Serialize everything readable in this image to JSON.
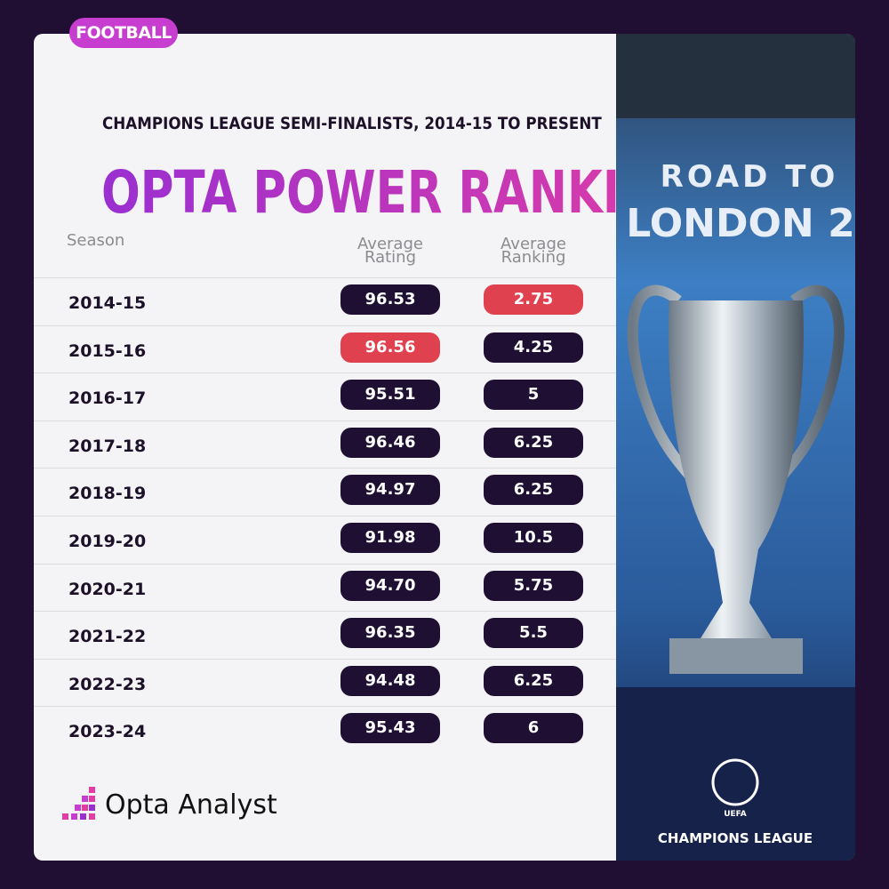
{
  "tag": "FOOTBALL",
  "header": {
    "subtitle": "CHAMPIONS LEAGUE SEMI-FINALISTS, 2014-15 TO PRESENT",
    "title": "OPTA POWER RANKINGS"
  },
  "table": {
    "columns": [
      "Season",
      "Average Rating",
      "Average Ranking"
    ],
    "highlight_color": "#e0414f",
    "rows": [
      {
        "season": "2014-15",
        "rating": "96.53",
        "ranking": "2.75",
        "highlight": "ranking"
      },
      {
        "season": "2015-16",
        "rating": "96.56",
        "ranking": "4.25",
        "highlight": "rating"
      },
      {
        "season": "2016-17",
        "rating": "95.51",
        "ranking": "5"
      },
      {
        "season": "2017-18",
        "rating": "96.46",
        "ranking": "6.25"
      },
      {
        "season": "2018-19",
        "rating": "94.97",
        "ranking": "6.25"
      },
      {
        "season": "2019-20",
        "rating": "91.98",
        "ranking": "10.5"
      },
      {
        "season": "2020-21",
        "rating": "94.70",
        "ranking": "5.75"
      },
      {
        "season": "2021-22",
        "rating": "96.35",
        "ranking": "5.5"
      },
      {
        "season": "2022-23",
        "rating": "94.48",
        "ranking": "6.25"
      },
      {
        "season": "2023-24",
        "rating": "95.43",
        "ranking": "6"
      }
    ]
  },
  "logo": "Opta Analyst",
  "photo": {
    "banner_top": "ROAD TO",
    "banner_city": "LONDON 2",
    "badge_small": "UEFA",
    "badge": "CHAMPIONS LEAGUE"
  }
}
